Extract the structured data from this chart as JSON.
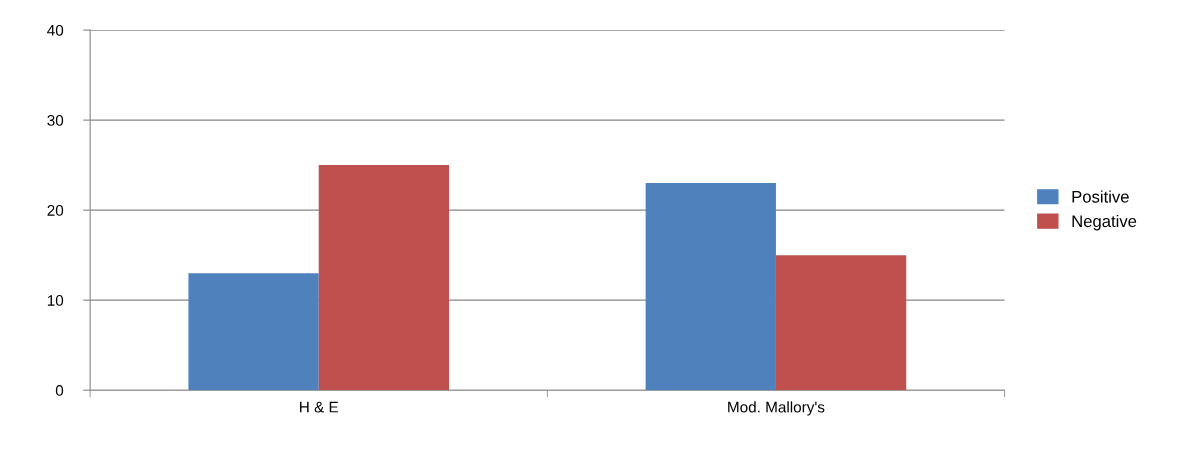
{
  "chart_data": {
    "type": "bar",
    "categories": [
      "H & E",
      "Mod. Mallory's"
    ],
    "series": [
      {
        "name": "Positive",
        "color": "#4f81bd",
        "values": [
          13,
          23
        ]
      },
      {
        "name": "Negative",
        "color": "#c0504d",
        "values": [
          25,
          15
        ]
      }
    ],
    "ylim": [
      0,
      40
    ],
    "yticks": [
      0,
      10,
      20,
      30,
      40
    ],
    "grid": "y",
    "legend": "right"
  }
}
